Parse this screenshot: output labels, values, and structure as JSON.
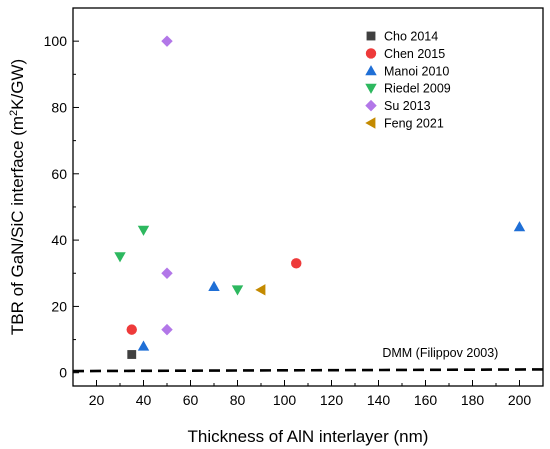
{
  "chart_data": {
    "type": "scatter",
    "title": "",
    "xlabel": "Thickness of AlN interlayer (nm)",
    "ylabel_parts": {
      "pre": "TBR of GaN/SiC interface (m",
      "sup": "2",
      "post": "K/GW)"
    },
    "xlim": [
      10,
      210
    ],
    "ylim": [
      -4,
      110
    ],
    "x_ticks": [
      20,
      40,
      60,
      80,
      100,
      120,
      140,
      160,
      180,
      200
    ],
    "y_ticks": [
      0,
      20,
      40,
      60,
      80,
      100
    ],
    "grid": false,
    "legend_position": "top-right",
    "series": [
      {
        "name": "Cho 2014",
        "marker": "square",
        "color": "#404040",
        "points": [
          [
            35,
            5.5
          ]
        ]
      },
      {
        "name": "Chen 2015",
        "marker": "circle",
        "color": "#ee3a3a",
        "points": [
          [
            35,
            13
          ],
          [
            105,
            33
          ]
        ]
      },
      {
        "name": "Manoi 2010",
        "marker": "triangle-up",
        "color": "#1f6fd6",
        "points": [
          [
            40,
            8
          ],
          [
            70,
            26
          ],
          [
            200,
            44
          ]
        ]
      },
      {
        "name": "Riedel 2009",
        "marker": "triangle-down",
        "color": "#2db85f",
        "points": [
          [
            30,
            35
          ],
          [
            40,
            43
          ],
          [
            80,
            25
          ]
        ]
      },
      {
        "name": "Su 2013",
        "marker": "diamond",
        "color": "#b277e8",
        "points": [
          [
            50,
            100
          ],
          [
            50,
            30
          ],
          [
            50,
            13
          ]
        ]
      },
      {
        "name": "Feng 2021",
        "marker": "triangle-left",
        "color": "#c48a00",
        "points": [
          [
            90,
            25
          ]
        ]
      }
    ],
    "dmm_line": {
      "label": "DMM (Filippov 2003)",
      "color": "#000000",
      "points": [
        [
          10,
          0.5
        ],
        [
          210,
          1.0
        ]
      ]
    }
  }
}
